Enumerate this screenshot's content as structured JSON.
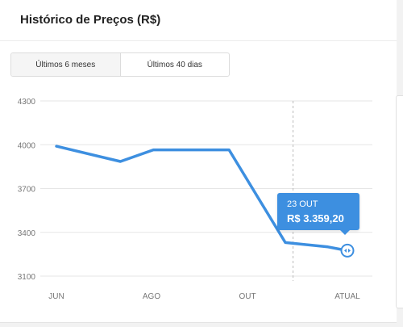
{
  "header": {
    "title": "Histórico de Preços (R$)"
  },
  "tabs": [
    {
      "label": "Últimos 6 meses",
      "active": true
    },
    {
      "label": "Últimos 40 dias",
      "active": false
    }
  ],
  "tooltip": {
    "date": "23 OUT",
    "value": "R$ 3.359,20"
  },
  "colors": {
    "line": "#3d8fe0",
    "grid": "#e6e6e6",
    "tooltip_bg": "#3d8fe0"
  },
  "chart_data": {
    "type": "line",
    "x_labels": [
      "JUN",
      "AGO",
      "OUT",
      "ATUAL"
    ],
    "y_ticks": [
      3100,
      3400,
      3700,
      4000,
      4300
    ],
    "ylim": [
      3100,
      4300
    ],
    "series": [
      {
        "x": [
          0,
          0.33,
          0.5,
          0.89,
          1.18,
          1.4,
          1.5
        ],
        "values": [
          3990,
          3885,
          3965,
          3965,
          3330,
          3300,
          3275
        ]
      }
    ],
    "xlim": [
      0,
      1.5
    ],
    "marker_point_index": 6,
    "crosshair_x": 1.22,
    "grid": true,
    "legend": "none"
  }
}
